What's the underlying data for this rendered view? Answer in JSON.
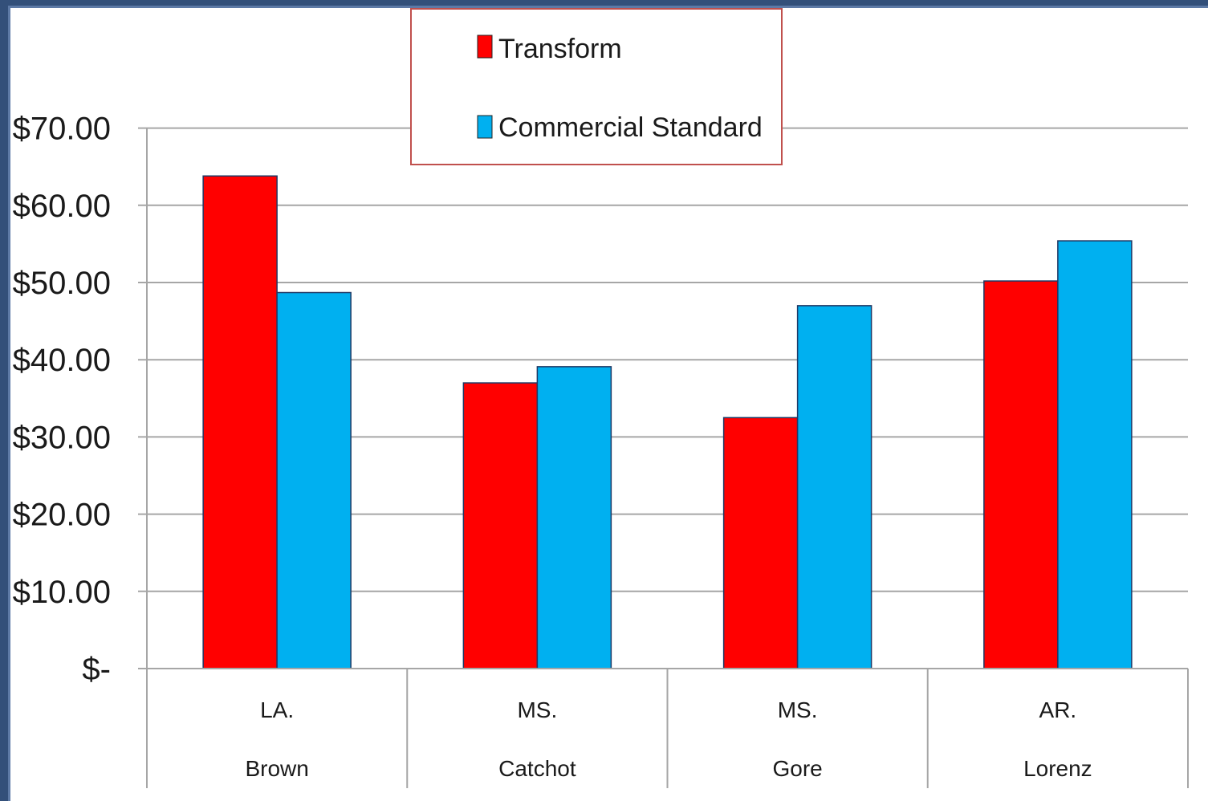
{
  "chart_data": {
    "type": "bar",
    "title": "",
    "xlabel": "",
    "ylabel": "",
    "ylim": [
      0,
      70
    ],
    "y_tick_step": 10,
    "y_tick_labels": [
      "$-",
      "$10.00",
      "$20.00",
      "$30.00",
      "$40.00",
      "$50.00",
      "$60.00",
      "$70.00"
    ],
    "grid": true,
    "legend_position": "top-center",
    "categories": [
      {
        "state": "LA.",
        "name": "Brown"
      },
      {
        "state": "MS.",
        "name": "Catchot"
      },
      {
        "state": "MS.",
        "name": "Gore"
      },
      {
        "state": "AR.",
        "name": "Lorenz"
      }
    ],
    "series": [
      {
        "name": "Transform",
        "color": "#ff0000",
        "values": [
          63.8,
          37.0,
          32.5,
          50.2
        ]
      },
      {
        "name": "Commercial Standard",
        "color": "#00b0f0",
        "values": [
          48.7,
          39.1,
          47.0,
          55.4
        ]
      }
    ]
  }
}
